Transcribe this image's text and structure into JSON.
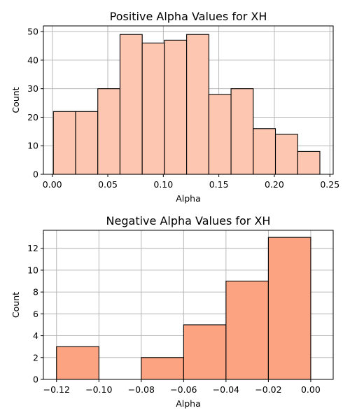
{
  "chart_data": [
    {
      "type": "bar",
      "title": "Positive Alpha Values for XH",
      "xlabel": "Alpha",
      "ylabel": "Count",
      "xlim": [
        -0.008,
        0.253
      ],
      "ylim": [
        0,
        52
      ],
      "x_ticks": [
        0.0,
        0.05,
        0.1,
        0.15,
        0.2,
        0.25
      ],
      "x_tick_labels": [
        "0.00",
        "0.05",
        "0.10",
        "0.15",
        "0.20",
        "0.25"
      ],
      "y_ticks": [
        0,
        10,
        20,
        30,
        40,
        50
      ],
      "y_tick_labels": [
        "0",
        "10",
        "20",
        "30",
        "40",
        "50"
      ],
      "bin_edges": [
        0.001,
        0.021,
        0.041,
        0.061,
        0.081,
        0.101,
        0.121,
        0.141,
        0.161,
        0.181,
        0.201,
        0.221,
        0.241
      ],
      "values": [
        22,
        22,
        30,
        49,
        46,
        47,
        49,
        28,
        30,
        16,
        14,
        8
      ],
      "color": "#fcc6b0",
      "edge_color": "#000000",
      "grid": true
    },
    {
      "type": "bar",
      "title": "Negative Alpha Values for XH",
      "xlabel": "Alpha",
      "ylabel": "Count",
      "xlim": [
        -0.1262,
        0.0106
      ],
      "ylim": [
        0,
        13.65
      ],
      "x_ticks": [
        -0.12,
        -0.1,
        -0.08,
        -0.06,
        -0.04,
        -0.02,
        0.0
      ],
      "x_tick_labels": [
        "−0.12",
        "−0.10",
        "−0.08",
        "−0.06",
        "−0.04",
        "−0.02",
        "0.00"
      ],
      "y_ticks": [
        0,
        2,
        4,
        6,
        8,
        10,
        12
      ],
      "y_tick_labels": [
        "0",
        "2",
        "4",
        "6",
        "8",
        "10",
        "12"
      ],
      "bin_edges": [
        -0.12,
        -0.1,
        -0.08,
        -0.06,
        -0.04,
        -0.02,
        0.0
      ],
      "values": [
        3,
        0,
        2,
        5,
        9,
        13
      ],
      "color": "#fca482",
      "edge_color": "#000000",
      "grid": true
    }
  ]
}
